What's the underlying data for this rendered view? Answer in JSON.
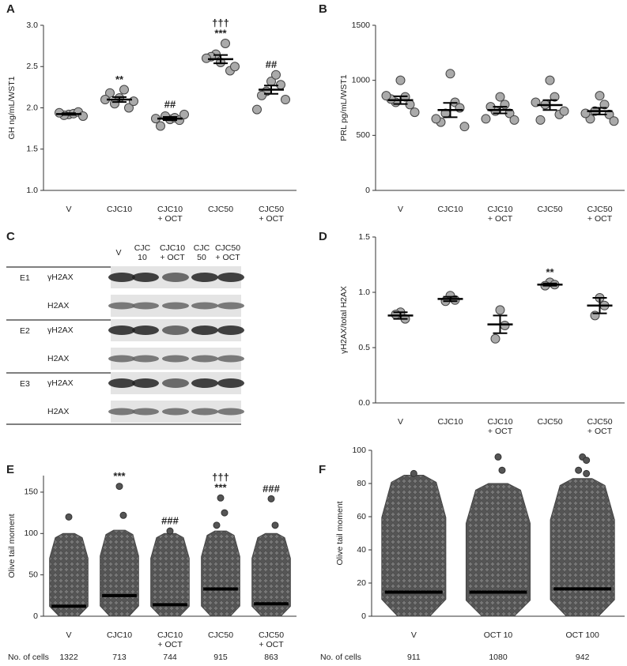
{
  "chart_data": [
    {
      "type": "dotplot",
      "panel": "A",
      "y_label": "GH ng/mL/WST1",
      "categories": [
        [
          "V"
        ],
        [
          "CJC10"
        ],
        [
          "CJC10",
          "+ OCT"
        ],
        [
          "CJC50"
        ],
        [
          "CJC50",
          "+ OCT"
        ]
      ],
      "points": [
        [
          1.92,
          1.93,
          1.91,
          1.95,
          1.94,
          1.9
        ],
        [
          2.12,
          2.22,
          2.05,
          2.0,
          2.18,
          2.08,
          2.1
        ],
        [
          1.86,
          1.88,
          1.9,
          1.85,
          1.78,
          1.92,
          1.87
        ],
        [
          2.55,
          2.78,
          2.65,
          2.45,
          2.62,
          2.5,
          2.6
        ],
        [
          2.32,
          2.4,
          2.2,
          2.28,
          2.15,
          2.1,
          1.98
        ]
      ],
      "means": [
        1.925,
        2.1,
        1.87,
        2.59,
        2.22
      ],
      "sems": [
        0.01,
        0.03,
        0.02,
        0.05,
        0.05
      ],
      "annotations": [
        null,
        [
          "**"
        ],
        [
          "##"
        ],
        [
          "†††",
          "***"
        ],
        [
          "##"
        ]
      ],
      "ylim": [
        1.0,
        3.0
      ],
      "yticks": [
        {
          "value": 1.0,
          "label": "1.0"
        },
        {
          "value": 1.5,
          "label": "1.5"
        },
        {
          "value": 2.0,
          "label": "2.0"
        },
        {
          "value": 2.5,
          "label": "2.5"
        },
        {
          "value": 3.0,
          "label": "3.0"
        }
      ],
      "color": "#aaaaaa"
    },
    {
      "type": "dotplot",
      "panel": "B",
      "y_label": "PRL pg/mL/WST1",
      "categories": [
        [
          "V"
        ],
        [
          "CJC10"
        ],
        [
          "CJC10",
          "+ OCT"
        ],
        [
          "CJC50"
        ],
        [
          "CJC50",
          "+ OCT"
        ]
      ],
      "points": [
        [
          1000,
          850,
          800,
          780,
          830,
          710,
          860
        ],
        [
          1060,
          800,
          700,
          750,
          620,
          580,
          650
        ],
        [
          850,
          780,
          720,
          700,
          760,
          640,
          650
        ],
        [
          1000,
          850,
          780,
          690,
          640,
          720,
          800
        ],
        [
          860,
          780,
          720,
          690,
          650,
          630,
          700
        ]
      ],
      "means": [
        820,
        730,
        730,
        775,
        720
      ],
      "sems": [
        35,
        65,
        30,
        45,
        30
      ],
      "annotations": [
        null,
        null,
        null,
        null,
        null
      ],
      "ylim": [
        0,
        1500
      ],
      "yticks": [
        0,
        500,
        1000,
        1500
      ],
      "color": "#aaaaaa"
    },
    {
      "type": "dotplot",
      "panel": "D",
      "y_label": "γH2AX/total H2AX",
      "categories": [
        [
          "V"
        ],
        [
          "CJC10"
        ],
        [
          "CJC10",
          "+ OCT"
        ],
        [
          "CJC50"
        ],
        [
          "CJC50",
          "+ OCT"
        ]
      ],
      "points": [
        [
          0.82,
          0.76,
          0.8
        ],
        [
          0.97,
          0.93,
          0.92
        ],
        [
          0.84,
          0.7,
          0.58
        ],
        [
          1.09,
          1.07,
          1.06
        ],
        [
          0.95,
          0.88,
          0.79
        ]
      ],
      "means": [
        0.79,
        0.94,
        0.71,
        1.07,
        0.88
      ],
      "sems": [
        0.03,
        0.02,
        0.08,
        0.01,
        0.07
      ],
      "annotations": [
        null,
        null,
        null,
        [
          "**"
        ],
        null
      ],
      "ylim": [
        0,
        1.5
      ],
      "yticks": [
        {
          "value": 0,
          "label": "0.0"
        },
        {
          "value": 0.5,
          "label": "0.5"
        },
        {
          "value": 1.0,
          "label": "1.0"
        },
        {
          "value": 1.5,
          "label": "1.5"
        }
      ],
      "color": "#aaaaaa"
    },
    {
      "type": "swarm",
      "panel": "E",
      "y_label": "Olive tail moment",
      "categories": [
        [
          "V"
        ],
        [
          "CJC10"
        ],
        [
          "CJC10",
          "+ OCT"
        ],
        [
          "CJC50"
        ],
        [
          "CJC50",
          "+ OCT"
        ]
      ],
      "ranges": [
        [
          0,
          100
        ],
        [
          0,
          104
        ],
        [
          0,
          100
        ],
        [
          0,
          103
        ],
        [
          0,
          100
        ]
      ],
      "outliers": [
        [
          120
        ],
        [
          157,
          122
        ],
        [
          103
        ],
        [
          143,
          125,
          110
        ],
        [
          142,
          110
        ]
      ],
      "means": [
        12,
        25,
        14,
        33,
        15
      ],
      "annotations": [
        null,
        [
          "***"
        ],
        [
          "###"
        ],
        [
          "†††",
          "***"
        ],
        [
          "###"
        ]
      ],
      "cell_count_label": "No. of cells",
      "cell_counts": [
        1322,
        713,
        744,
        915,
        863
      ],
      "ylim": [
        0,
        170
      ],
      "yticks": [
        0,
        50,
        100,
        150
      ],
      "color": "#555555"
    },
    {
      "type": "swarm",
      "panel": "F",
      "y_label": "Olive tail moment",
      "categories": [
        [
          "V"
        ],
        [
          "OCT 10"
        ],
        [
          "OCT 100"
        ]
      ],
      "ranges": [
        [
          0,
          85
        ],
        [
          0,
          80
        ],
        [
          0,
          83
        ]
      ],
      "outliers": [
        [
          86
        ],
        [
          96,
          88
        ],
        [
          96,
          94,
          88,
          86
        ]
      ],
      "means": [
        14.5,
        14.5,
        16.5
      ],
      "annotations": [
        null,
        null,
        null
      ],
      "cell_count_label": "No. of cells",
      "cell_counts": [
        911,
        1080,
        942
      ],
      "ylim": [
        0,
        100
      ],
      "yticks": [
        0,
        20,
        40,
        60,
        80,
        100
      ],
      "color": "#555555"
    }
  ],
  "blot": {
    "panel": "C",
    "lanes": [
      [
        "V"
      ],
      [
        "CJC",
        "10"
      ],
      [
        "CJC10",
        "+ OCT"
      ],
      [
        "CJC",
        "50"
      ],
      [
        "CJC50",
        "+ OCT"
      ]
    ],
    "groups": [
      {
        "name": "E1",
        "bands": [
          "γH2AX",
          "H2AX"
        ]
      },
      {
        "name": "E2",
        "bands": [
          "γH2AX",
          "H2AX"
        ]
      },
      {
        "name": "E3",
        "bands": [
          "γH2AX",
          "H2AX"
        ]
      }
    ]
  }
}
